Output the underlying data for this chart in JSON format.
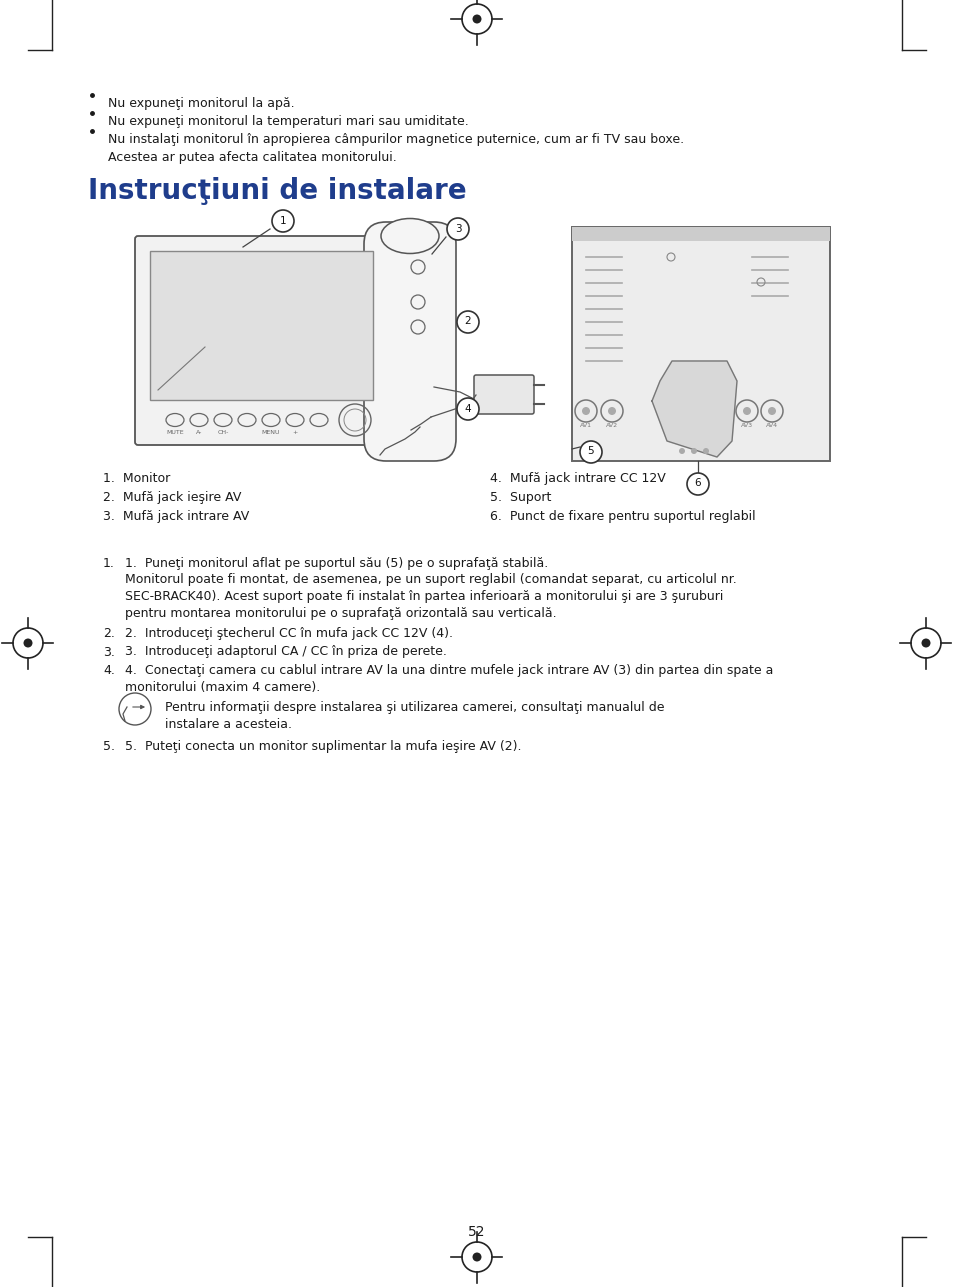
{
  "bg_color": "#ffffff",
  "text_color": "#1a1a1a",
  "blue_color": "#1f3d8c",
  "page_number": "52",
  "title": "Instrucţiuni de instalare",
  "bp1": "Nu expuneţi monitorul la apă.",
  "bp2": "Nu expuneţi monitorul la temperaturi mari sau umiditate.",
  "bp3a": "Nu instalaţi monitorul în apropierea câmpurilor magnetice puternice, cum ar fi TV sau boxe.",
  "bp3b": "Acestea ar putea afecta calitatea monitorului.",
  "lbl1": "1.  Monitor",
  "lbl2": "2.  Mufă jack ieşire AV",
  "lbl3": "3.  Mufă jack intrare AV",
  "lbl4": "4.  Mufă jack intrare CC 12V",
  "lbl5": "5.  Suport",
  "lbl6": "6.  Punct de fixare pentru suportul reglabil",
  "inst1": "1.  Puneţi monitorul aflat pe suportul său (5) pe o suprafaţă stabilă.",
  "inst1b": "Monitorul poate fi montat, de asemenea, pe un suport reglabil (comandat separat, cu articolul nr.",
  "inst1c": "SEC-BRACK40). Acest suport poate fi instalat în partea inferioară a monitorului şi are 3 şuruburi",
  "inst1d": "pentru montarea monitorului pe o suprafaţă orizontală sau verticală.",
  "inst2": "2.  Introduceţi ştecherul CC în mufa jack CC 12V (4).",
  "inst3": "3.  Introduceţi adaptorul CA / CC în priza de perete.",
  "inst4": "4.  Conectaţi camera cu cablul intrare AV la una dintre mufele jack intrare AV (3) din partea din spate a",
  "inst4b": "monitorului (maxim 4 camere).",
  "inst_note1": "Pentru informaţii despre instalarea şi utilizarea camerei, consultaţi manualul de",
  "inst_note2": "instalare a acesteia.",
  "inst5": "5.  Puteţi conecta un monitor suplimentar la mufa ieşire AV (2)."
}
